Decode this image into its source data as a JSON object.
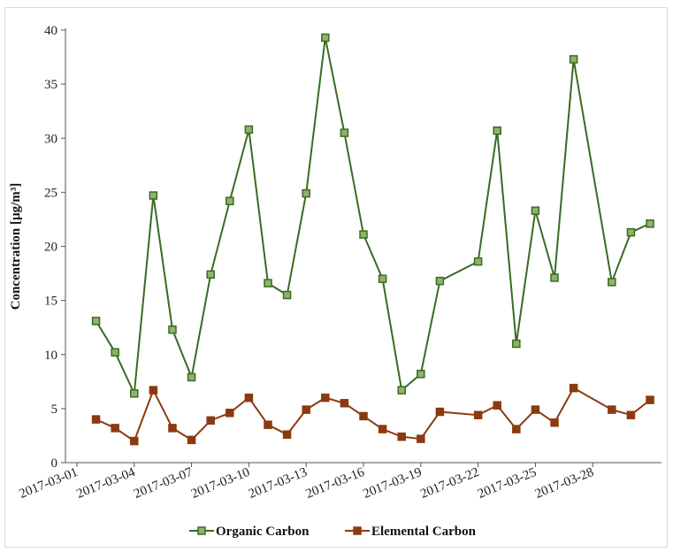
{
  "chart_data": {
    "type": "line",
    "ylabel": "Concentration  [µg/m³]",
    "ylim": [
      0,
      40
    ],
    "yticks": [
      0,
      5,
      10,
      15,
      20,
      25,
      30,
      35,
      40
    ],
    "xticks": [
      "2017-03-01",
      "2017-03-04",
      "2017-03-07",
      "2017-03-10",
      "2017-03-13",
      "2017-03-16",
      "2017-03-19",
      "2017-03-22",
      "2017-03-25",
      "2017-03-28"
    ],
    "x_range": [
      "2017-03-01",
      "2017-03-31"
    ],
    "grid": false,
    "legend_position": "bottom",
    "x": [
      "2017-03-02",
      "2017-03-03",
      "2017-03-04",
      "2017-03-05",
      "2017-03-06",
      "2017-03-07",
      "2017-03-08",
      "2017-03-09",
      "2017-03-10",
      "2017-03-11",
      "2017-03-12",
      "2017-03-13",
      "2017-03-14",
      "2017-03-15",
      "2017-03-16",
      "2017-03-17",
      "2017-03-18",
      "2017-03-19",
      "2017-03-20",
      "2017-03-22",
      "2017-03-23",
      "2017-03-24",
      "2017-03-25",
      "2017-03-26",
      "2017-03-27",
      "2017-03-29",
      "2017-03-30",
      "2017-03-31"
    ],
    "series": [
      {
        "name": "Organic Carbon",
        "color": "#3a6b23",
        "values": [
          13.1,
          10.2,
          6.4,
          24.7,
          12.3,
          7.9,
          17.4,
          24.2,
          30.8,
          16.6,
          15.5,
          24.9,
          39.3,
          30.5,
          21.1,
          17.0,
          6.7,
          8.2,
          16.8,
          18.6,
          30.7,
          11.0,
          23.3,
          17.1,
          37.3,
          16.7,
          21.3,
          22.1
        ]
      },
      {
        "name": "Elemental Carbon",
        "color": "#8b3a0f",
        "values": [
          4.0,
          3.2,
          2.0,
          6.7,
          3.2,
          2.1,
          3.9,
          4.6,
          6.0,
          3.5,
          2.6,
          4.9,
          6.0,
          5.5,
          4.3,
          3.1,
          2.4,
          2.2,
          4.7,
          4.4,
          5.3,
          3.1,
          4.9,
          3.7,
          6.9,
          4.9,
          4.4,
          5.8
        ]
      }
    ]
  }
}
